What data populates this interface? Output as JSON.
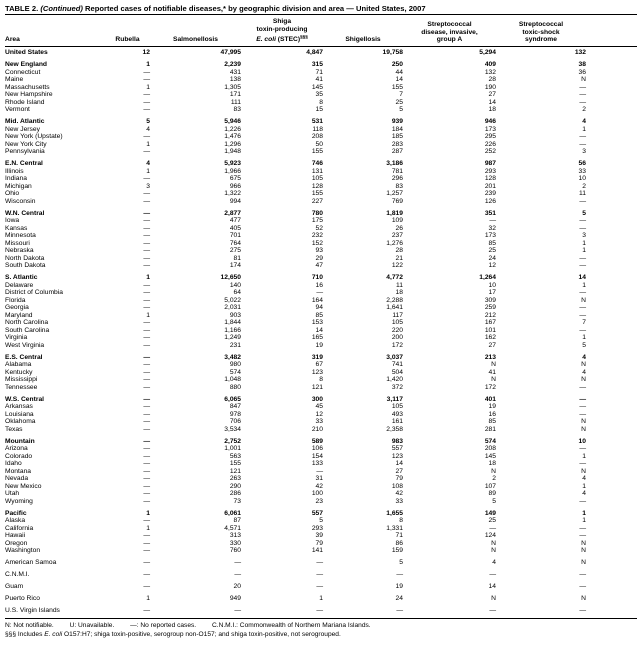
{
  "title": {
    "part1": "TABLE 2. ",
    "part2": "(Continued)",
    "part3": " Reported cases of notifiable diseases,* by geographic division and area — United States, 2007"
  },
  "columns": {
    "area": "Area",
    "rubella": "Rubella",
    "salmonellosis": "Salmonellosis",
    "stec": {
      "line1": "Shiga",
      "line2": "toxin-producing",
      "line3_italic": "E. coli",
      "line3_rest": " (STEC)",
      "line3_sup": "§§§"
    },
    "shigellosis": "Shigellosis",
    "strep_group_a": {
      "line1": "Streptococcal",
      "line2": "disease, invasive,",
      "line3": "group A"
    },
    "strep_toxic_shock": {
      "line1": "Streptococcal",
      "line2": "toxic-shock",
      "line3": "syndrome"
    }
  },
  "rows": [
    {
      "area": "United States",
      "bold": true,
      "spacer": false,
      "values": [
        "12",
        "47,995",
        "4,847",
        "19,758",
        "5,294",
        "132"
      ]
    },
    {
      "area": "New England",
      "bold": true,
      "spacer": true,
      "values": [
        "1",
        "2,239",
        "315",
        "250",
        "409",
        "38"
      ]
    },
    {
      "area": "Connecticut",
      "bold": false,
      "spacer": false,
      "values": [
        "—",
        "431",
        "71",
        "44",
        "132",
        "36"
      ]
    },
    {
      "area": "Maine",
      "bold": false,
      "spacer": false,
      "values": [
        "—",
        "138",
        "41",
        "14",
        "28",
        "N"
      ]
    },
    {
      "area": "Massachusetts",
      "bold": false,
      "spacer": false,
      "values": [
        "1",
        "1,305",
        "145",
        "155",
        "190",
        "—"
      ]
    },
    {
      "area": "New Hampshire",
      "bold": false,
      "spacer": false,
      "values": [
        "—",
        "171",
        "35",
        "7",
        "27",
        "—"
      ]
    },
    {
      "area": "Rhode Island",
      "bold": false,
      "spacer": false,
      "values": [
        "—",
        "111",
        "8",
        "25",
        "14",
        "—"
      ]
    },
    {
      "area": "Vermont",
      "bold": false,
      "spacer": false,
      "values": [
        "—",
        "83",
        "15",
        "5",
        "18",
        "2"
      ]
    },
    {
      "area": "Mid. Atlantic",
      "bold": true,
      "spacer": true,
      "values": [
        "5",
        "5,946",
        "531",
        "939",
        "946",
        "4"
      ]
    },
    {
      "area": "New Jersey",
      "bold": false,
      "spacer": false,
      "values": [
        "4",
        "1,226",
        "118",
        "184",
        "173",
        "1"
      ]
    },
    {
      "area": "New York (Upstate)",
      "bold": false,
      "spacer": false,
      "values": [
        "—",
        "1,476",
        "208",
        "185",
        "295",
        "—"
      ]
    },
    {
      "area": "New York City",
      "bold": false,
      "spacer": false,
      "values": [
        "1",
        "1,296",
        "50",
        "283",
        "226",
        "—"
      ]
    },
    {
      "area": "Pennsylvania",
      "bold": false,
      "spacer": false,
      "values": [
        "—",
        "1,948",
        "155",
        "287",
        "252",
        "3"
      ]
    },
    {
      "area": "E.N. Central",
      "bold": true,
      "spacer": true,
      "values": [
        "4",
        "5,923",
        "746",
        "3,186",
        "987",
        "56"
      ]
    },
    {
      "area": "Illinois",
      "bold": false,
      "spacer": false,
      "values": [
        "1",
        "1,966",
        "131",
        "781",
        "293",
        "33"
      ]
    },
    {
      "area": "Indiana",
      "bold": false,
      "spacer": false,
      "values": [
        "—",
        "675",
        "105",
        "296",
        "128",
        "10"
      ]
    },
    {
      "area": "Michigan",
      "bold": false,
      "spacer": false,
      "values": [
        "3",
        "966",
        "128",
        "83",
        "201",
        "2"
      ]
    },
    {
      "area": "Ohio",
      "bold": false,
      "spacer": false,
      "values": [
        "—",
        "1,322",
        "155",
        "1,257",
        "239",
        "11"
      ]
    },
    {
      "area": "Wisconsin",
      "bold": false,
      "spacer": false,
      "values": [
        "—",
        "994",
        "227",
        "769",
        "126",
        "—"
      ]
    },
    {
      "area": "W.N. Central",
      "bold": true,
      "spacer": true,
      "values": [
        "—",
        "2,877",
        "780",
        "1,819",
        "351",
        "5"
      ]
    },
    {
      "area": "Iowa",
      "bold": false,
      "spacer": false,
      "values": [
        "—",
        "477",
        "175",
        "109",
        "—",
        "—"
      ]
    },
    {
      "area": "Kansas",
      "bold": false,
      "spacer": false,
      "values": [
        "—",
        "405",
        "52",
        "26",
        "32",
        "—"
      ]
    },
    {
      "area": "Minnesota",
      "bold": false,
      "spacer": false,
      "values": [
        "—",
        "701",
        "232",
        "237",
        "173",
        "3"
      ]
    },
    {
      "area": "Missouri",
      "bold": false,
      "spacer": false,
      "values": [
        "—",
        "764",
        "152",
        "1,276",
        "85",
        "1"
      ]
    },
    {
      "area": "Nebraska",
      "bold": false,
      "spacer": false,
      "values": [
        "—",
        "275",
        "93",
        "28",
        "25",
        "1"
      ]
    },
    {
      "area": "North Dakota",
      "bold": false,
      "spacer": false,
      "values": [
        "—",
        "81",
        "29",
        "21",
        "24",
        "—"
      ]
    },
    {
      "area": "South Dakota",
      "bold": false,
      "spacer": false,
      "values": [
        "—",
        "174",
        "47",
        "122",
        "12",
        "—"
      ]
    },
    {
      "area": "S. Atlantic",
      "bold": true,
      "spacer": true,
      "values": [
        "1",
        "12,650",
        "710",
        "4,772",
        "1,264",
        "14"
      ]
    },
    {
      "area": "Delaware",
      "bold": false,
      "spacer": false,
      "values": [
        "—",
        "140",
        "16",
        "11",
        "10",
        "1"
      ]
    },
    {
      "area": "District of Columbia",
      "bold": false,
      "spacer": false,
      "values": [
        "—",
        "64",
        "—",
        "18",
        "17",
        "—"
      ]
    },
    {
      "area": "Florida",
      "bold": false,
      "spacer": false,
      "values": [
        "—",
        "5,022",
        "164",
        "2,288",
        "309",
        "N"
      ]
    },
    {
      "area": "Georgia",
      "bold": false,
      "spacer": false,
      "values": [
        "—",
        "2,031",
        "94",
        "1,641",
        "259",
        "—"
      ]
    },
    {
      "area": "Maryland",
      "bold": false,
      "spacer": false,
      "values": [
        "1",
        "903",
        "85",
        "117",
        "212",
        "—"
      ]
    },
    {
      "area": "North Carolina",
      "bold": false,
      "spacer": false,
      "values": [
        "—",
        "1,844",
        "153",
        "105",
        "167",
        "7"
      ]
    },
    {
      "area": "South Carolina",
      "bold": false,
      "spacer": false,
      "values": [
        "—",
        "1,166",
        "14",
        "220",
        "101",
        "—"
      ]
    },
    {
      "area": "Virginia",
      "bold": false,
      "spacer": false,
      "values": [
        "—",
        "1,249",
        "165",
        "200",
        "162",
        "1"
      ]
    },
    {
      "area": "West Virginia",
      "bold": false,
      "spacer": false,
      "values": [
        "—",
        "231",
        "19",
        "172",
        "27",
        "5"
      ]
    },
    {
      "area": "E.S. Central",
      "bold": true,
      "spacer": true,
      "values": [
        "—",
        "3,482",
        "319",
        "3,037",
        "213",
        "4"
      ]
    },
    {
      "area": "Alabama",
      "bold": false,
      "spacer": false,
      "values": [
        "—",
        "980",
        "67",
        "741",
        "N",
        "N"
      ]
    },
    {
      "area": "Kentucky",
      "bold": false,
      "spacer": false,
      "values": [
        "—",
        "574",
        "123",
        "504",
        "41",
        "4"
      ]
    },
    {
      "area": "Mississippi",
      "bold": false,
      "spacer": false,
      "values": [
        "—",
        "1,048",
        "8",
        "1,420",
        "N",
        "N"
      ]
    },
    {
      "area": "Tennessee",
      "bold": false,
      "spacer": false,
      "values": [
        "—",
        "880",
        "121",
        "372",
        "172",
        "—"
      ]
    },
    {
      "area": "W.S. Central",
      "bold": true,
      "spacer": true,
      "values": [
        "—",
        "6,065",
        "300",
        "3,117",
        "401",
        "—"
      ]
    },
    {
      "area": "Arkansas",
      "bold": false,
      "spacer": false,
      "values": [
        "—",
        "847",
        "45",
        "105",
        "19",
        "—"
      ]
    },
    {
      "area": "Louisiana",
      "bold": false,
      "spacer": false,
      "values": [
        "—",
        "978",
        "12",
        "493",
        "16",
        "—"
      ]
    },
    {
      "area": "Oklahoma",
      "bold": false,
      "spacer": false,
      "values": [
        "—",
        "706",
        "33",
        "161",
        "85",
        "N"
      ]
    },
    {
      "area": "Texas",
      "bold": false,
      "spacer": false,
      "values": [
        "—",
        "3,534",
        "210",
        "2,358",
        "281",
        "N"
      ]
    },
    {
      "area": "Mountain",
      "bold": true,
      "spacer": true,
      "values": [
        "—",
        "2,752",
        "589",
        "983",
        "574",
        "10"
      ]
    },
    {
      "area": "Arizona",
      "bold": false,
      "spacer": false,
      "values": [
        "—",
        "1,001",
        "106",
        "557",
        "208",
        "—"
      ]
    },
    {
      "area": "Colorado",
      "bold": false,
      "spacer": false,
      "values": [
        "—",
        "563",
        "154",
        "123",
        "145",
        "1"
      ]
    },
    {
      "area": "Idaho",
      "bold": false,
      "spacer": false,
      "values": [
        "—",
        "155",
        "133",
        "14",
        "18",
        "—"
      ]
    },
    {
      "area": "Montana",
      "bold": false,
      "spacer": false,
      "values": [
        "—",
        "121",
        "—",
        "27",
        "N",
        "N"
      ]
    },
    {
      "area": "Nevada",
      "bold": false,
      "spacer": false,
      "values": [
        "—",
        "263",
        "31",
        "79",
        "2",
        "4"
      ]
    },
    {
      "area": "New Mexico",
      "bold": false,
      "spacer": false,
      "values": [
        "—",
        "290",
        "42",
        "108",
        "107",
        "1"
      ]
    },
    {
      "area": "Utah",
      "bold": false,
      "spacer": false,
      "values": [
        "—",
        "286",
        "100",
        "42",
        "89",
        "4"
      ]
    },
    {
      "area": "Wyoming",
      "bold": false,
      "spacer": false,
      "values": [
        "—",
        "73",
        "23",
        "33",
        "5",
        "—"
      ]
    },
    {
      "area": "Pacific",
      "bold": true,
      "spacer": true,
      "values": [
        "1",
        "6,061",
        "557",
        "1,655",
        "149",
        "1"
      ]
    },
    {
      "area": "Alaska",
      "bold": false,
      "spacer": false,
      "values": [
        "—",
        "87",
        "5",
        "8",
        "25",
        "1"
      ]
    },
    {
      "area": "California",
      "bold": false,
      "spacer": false,
      "values": [
        "1",
        "4,571",
        "293",
        "1,331",
        "—",
        "—"
      ]
    },
    {
      "area": "Hawaii",
      "bold": false,
      "spacer": false,
      "values": [
        "—",
        "313",
        "39",
        "71",
        "124",
        "—"
      ]
    },
    {
      "area": "Oregon",
      "bold": false,
      "spacer": false,
      "values": [
        "—",
        "330",
        "79",
        "86",
        "N",
        "N"
      ]
    },
    {
      "area": "Washington",
      "bold": false,
      "spacer": false,
      "values": [
        "—",
        "760",
        "141",
        "159",
        "N",
        "N"
      ]
    },
    {
      "area": "American Samoa",
      "bold": false,
      "spacer": true,
      "values": [
        "—",
        "—",
        "—",
        "5",
        "4",
        "N"
      ]
    },
    {
      "area": "C.N.M.I.",
      "bold": false,
      "spacer": true,
      "values": [
        "—",
        "—",
        "—",
        "—",
        "—",
        "—"
      ]
    },
    {
      "area": "Guam",
      "bold": false,
      "spacer": true,
      "values": [
        "—",
        "20",
        "—",
        "19",
        "14",
        "—"
      ]
    },
    {
      "area": "Puerto Rico",
      "bold": false,
      "spacer": true,
      "values": [
        "1",
        "949",
        "1",
        "24",
        "N",
        "N"
      ]
    },
    {
      "area": "U.S. Virgin Islands",
      "bold": false,
      "spacer": true,
      "values": [
        "—",
        "—",
        "—",
        "—",
        "—",
        "—"
      ]
    }
  ],
  "footnotes": {
    "line1": [
      "N: Not notifiable.",
      "U: Unavailable.",
      "—: No reported cases.",
      "C.N.M.I.: Commonwealth of Northern Mariana Islands."
    ],
    "line2_prefix": "§§§ Includes ",
    "line2_italic": "E. coli",
    "line2_rest": " O157:H7; shiga toxin-positive, serogroup non-O157; and shiga toxin-positive, not serogrouped."
  }
}
